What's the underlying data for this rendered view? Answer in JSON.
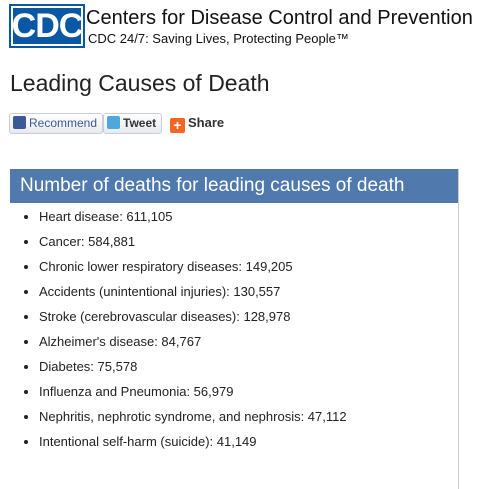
{
  "header": {
    "logo": "CDC",
    "organization": "Centers for Disease Control and Prevention",
    "tagline": "CDC 24/7: Saving Lives, Protecting People™"
  },
  "title": "Leading Causes of Death",
  "social": {
    "recommend": "Recommend",
    "tweet": "Tweet",
    "share": "Share"
  },
  "box": {
    "heading": "Number of deaths for leading causes of death",
    "items": [
      "Heart disease: 611,105",
      "Cancer: 584,881",
      "Chronic lower respiratory diseases: 149,205",
      "Accidents (unintentional injuries): 130,557",
      "Stroke (cerebrovascular diseases): 128,978",
      "Alzheimer's disease: 84,767",
      "Diabetes: 75,578",
      "Influenza and Pneumonia: 56,979",
      "Nephritis, nephrotic syndrome, and nephrosis: 47,112",
      "Intentional self-harm (suicide): 41,149"
    ]
  }
}
